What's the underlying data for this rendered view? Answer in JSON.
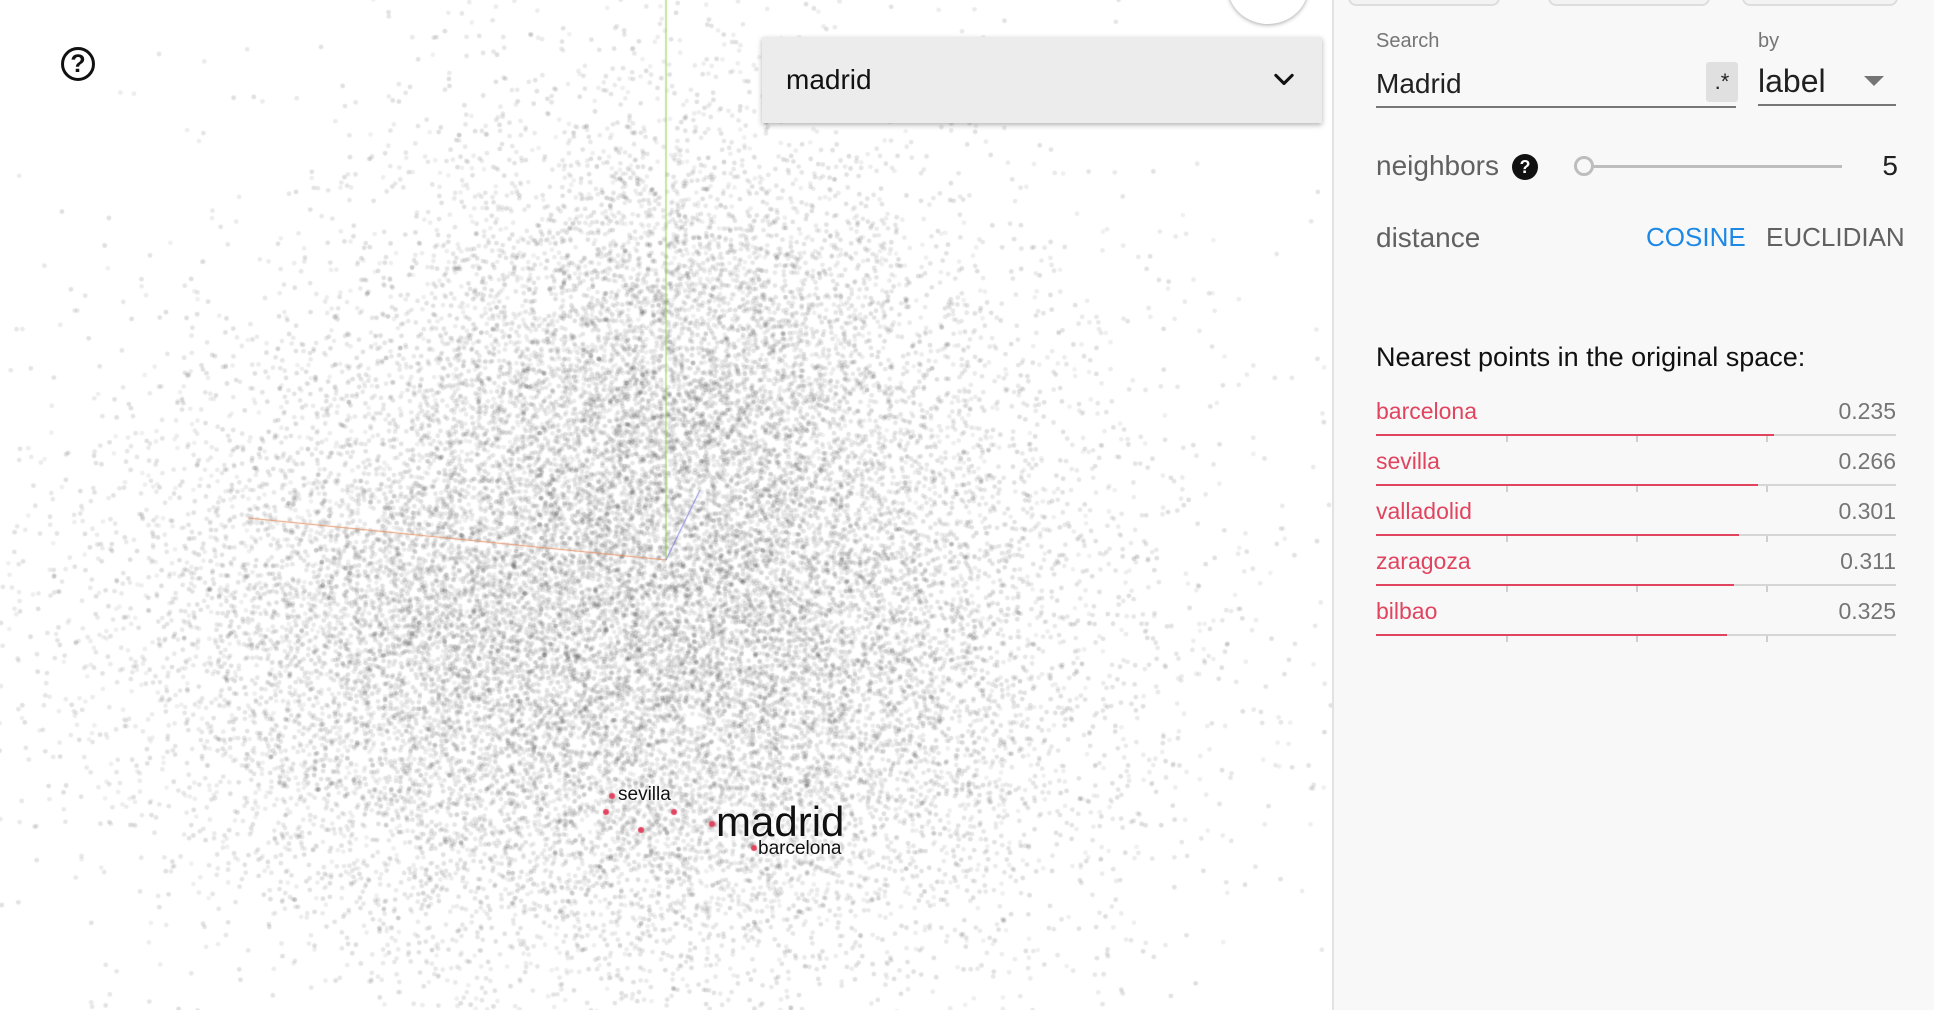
{
  "projection": {
    "selected_label": "madrid",
    "point_labels": {
      "primary": "madrid",
      "neighbors": [
        "sevilla",
        "barcelona"
      ]
    },
    "icons": {
      "help": "help-circle-icon",
      "dropdown": "chevron-down-icon"
    }
  },
  "inspector": {
    "search": {
      "label": "Search",
      "value": "Madrid",
      "regex_label": ".*"
    },
    "by": {
      "label": "by",
      "value": "label"
    },
    "neighbors": {
      "label": "neighbors",
      "help": "?",
      "value": "5"
    },
    "distance": {
      "label": "distance",
      "cosine": "COSINE",
      "euclidian": "EUCLIDIAN",
      "active": "COSINE"
    },
    "nearest": {
      "heading": "Nearest points in the original space:",
      "items": [
        {
          "name": "barcelona",
          "value": "0.235",
          "fraction": 0.765
        },
        {
          "name": "sevilla",
          "value": "0.266",
          "fraction": 0.734
        },
        {
          "name": "valladolid",
          "value": "0.301",
          "fraction": 0.699
        },
        {
          "name": "zaragoza",
          "value": "0.311",
          "fraction": 0.689
        },
        {
          "name": "bilbao",
          "value": "0.325",
          "fraction": 0.675
        }
      ]
    }
  },
  "colors": {
    "accent": "#1e88e5",
    "neighbor": "#e0445f",
    "point": "#000000"
  }
}
